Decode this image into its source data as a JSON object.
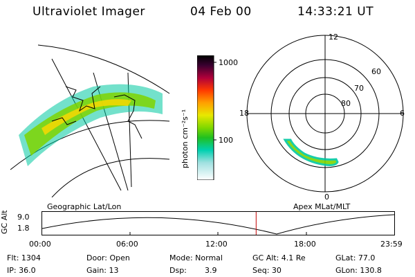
{
  "header": {
    "instrument": "Ultraviolet Imager",
    "date": "04 Feb 00",
    "time": "14:33:21 UT"
  },
  "colorbar": {
    "unit_label": "photon cm⁻²s⁻¹",
    "ticks": [
      "1000",
      "100"
    ]
  },
  "left_map": {
    "caption": "Geographic Lat/Lon"
  },
  "right_map": {
    "caption": "Apex  MLat/MLT",
    "lat_labels": [
      "60",
      "70",
      "80"
    ],
    "mlt_labels": [
      "12",
      "18",
      "6",
      "0"
    ]
  },
  "altitude_plot": {
    "axis_label": "GC Alt",
    "y_ticks": [
      "9.0",
      "1.8"
    ],
    "x_ticks": [
      "00:00",
      "06:00",
      "12:00",
      "18:00",
      "23:59"
    ],
    "current_time_fraction": 0.6065
  },
  "info": {
    "flt": "Flt: 1304",
    "door": "Door: Open",
    "mode": "Mode: Normal",
    "gc_alt": "GC Alt: 4.1 Re",
    "glat": "GLat: 77.0",
    "ip": "IP: 36.0",
    "gain": "Gain: 13",
    "dsp_label": "Dsp:",
    "dsp_value": "3.9",
    "seq": "Seq: 30",
    "glon": "GLon: 130.8"
  },
  "colors": {
    "aurora_high": "#ffd800",
    "aurora_mid": "#7fd400",
    "aurora_low": "#00c8a0",
    "time_marker": "#c00000"
  }
}
